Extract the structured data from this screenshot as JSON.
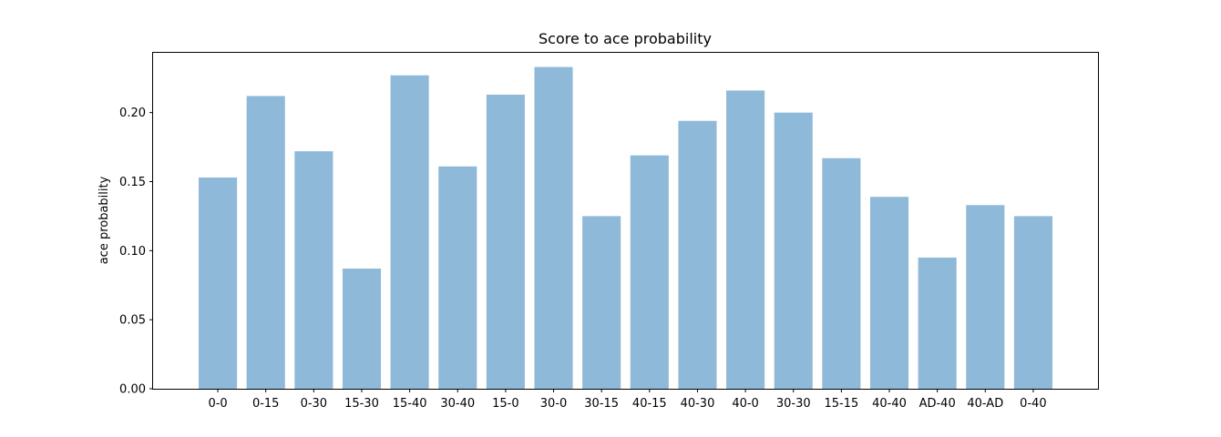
{
  "chart_data": {
    "type": "bar",
    "title": "Score to ace probability",
    "xlabel": "",
    "ylabel": "ace probability",
    "categories": [
      "0-0",
      "0-15",
      "0-30",
      "15-30",
      "15-40",
      "30-40",
      "15-0",
      "30-0",
      "30-15",
      "40-15",
      "40-30",
      "40-0",
      "30-30",
      "15-15",
      "40-40",
      "AD-40",
      "40-AD",
      "0-40"
    ],
    "values": [
      0.153,
      0.212,
      0.172,
      0.087,
      0.227,
      0.161,
      0.213,
      0.233,
      0.125,
      0.169,
      0.194,
      0.216,
      0.2,
      0.167,
      0.139,
      0.095,
      0.133,
      0.125
    ],
    "ylim": [
      0,
      0.2433
    ],
    "yticks": [
      0.0,
      0.05,
      0.1,
      0.15,
      0.2
    ],
    "ytick_labels": [
      "0.00",
      "0.05",
      "0.10",
      "0.15",
      "0.20"
    ],
    "bar_color": "#8fb9d9",
    "grid": false,
    "legend": false
  }
}
